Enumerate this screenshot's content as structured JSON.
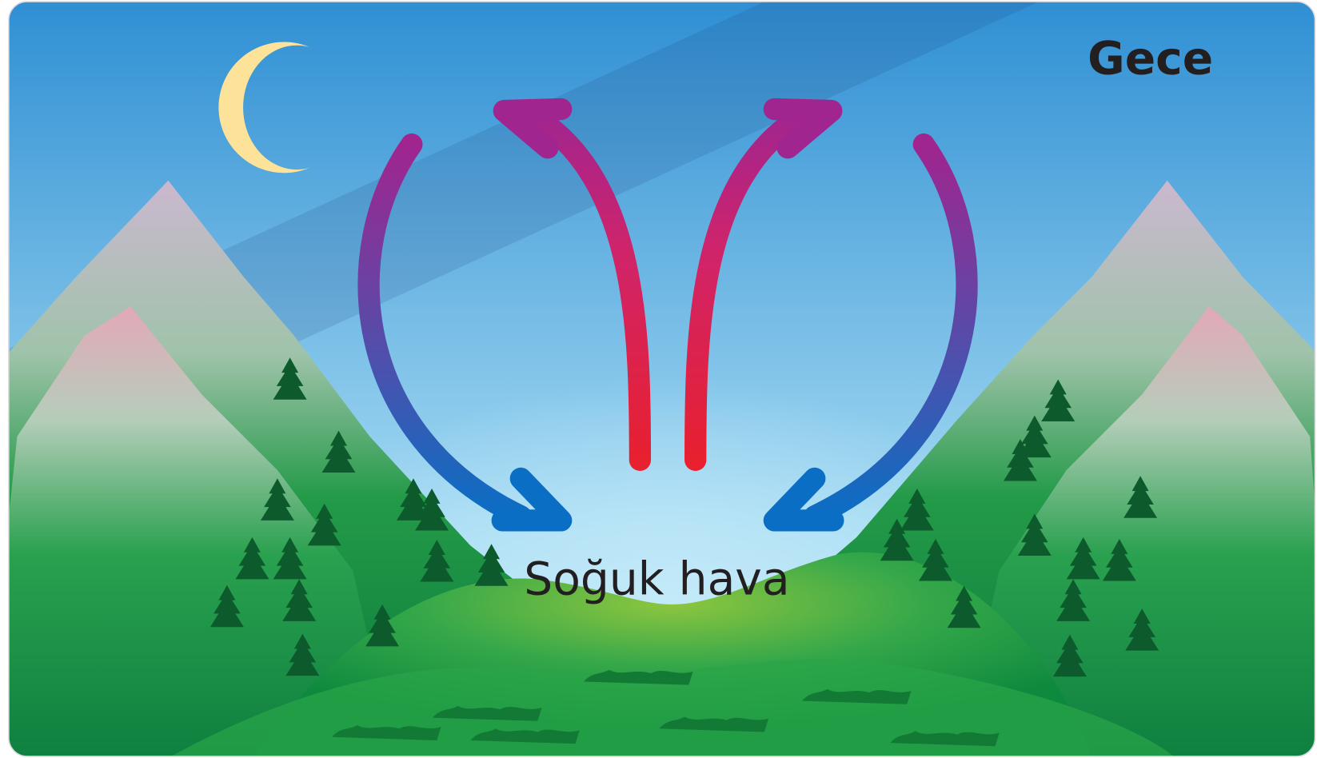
{
  "time_label": "Gece",
  "air_label": "Soğuk hava"
}
